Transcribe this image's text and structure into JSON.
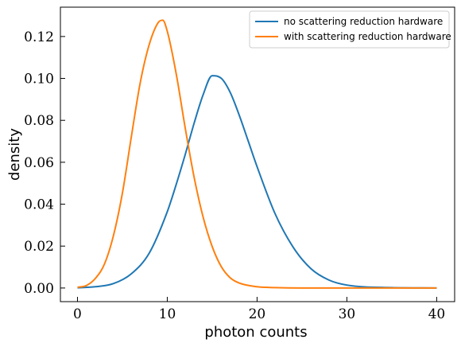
{
  "chart_data": {
    "type": "line",
    "xlabel": "photon counts",
    "ylabel": "density",
    "xlim": [
      -1.9,
      42
    ],
    "ylim": [
      -0.0065,
      0.134
    ],
    "xticks": [
      0,
      10,
      20,
      30,
      40
    ],
    "xtick_labels": [
      "0",
      "10",
      "20",
      "30",
      "40"
    ],
    "yticks": [
      0.0,
      0.02,
      0.04,
      0.06,
      0.08,
      0.1,
      0.12
    ],
    "ytick_labels": [
      "0.00",
      "0.02",
      "0.04",
      "0.06",
      "0.08",
      "0.10",
      "0.12"
    ],
    "grid": false,
    "legend_position": "top-right",
    "series": [
      {
        "name": "no scattering reduction hardware",
        "color": "#1f77b4",
        "x": [
          0,
          2,
          4,
          6,
          8,
          10,
          11,
          12,
          13,
          14,
          15,
          16,
          17,
          18,
          19,
          20,
          22,
          24,
          26,
          28,
          30,
          35,
          40
        ],
        "y": [
          0.0001,
          0.0006,
          0.0021,
          0.0068,
          0.0167,
          0.0364,
          0.0495,
          0.0637,
          0.0788,
          0.0923,
          0.1013,
          0.1001,
          0.0934,
          0.0826,
          0.0703,
          0.0579,
          0.0355,
          0.0196,
          0.0092,
          0.0038,
          0.0014,
          0.0002,
          0.0
        ]
      },
      {
        "name": "with scattering reduction hardware",
        "color": "#ff7f0e",
        "x": [
          0,
          1,
          2,
          3,
          4,
          5,
          6,
          7,
          8,
          9,
          9.5,
          10,
          11,
          12,
          13,
          14,
          15,
          16,
          17,
          18,
          20,
          22,
          25,
          30,
          40
        ],
        "y": [
          0.0003,
          0.0012,
          0.0046,
          0.0114,
          0.0249,
          0.0452,
          0.0722,
          0.0982,
          0.1163,
          0.1267,
          0.1278,
          0.1225,
          0.1021,
          0.0763,
          0.0526,
          0.0337,
          0.0198,
          0.0103,
          0.0049,
          0.0024,
          0.0006,
          0.0002,
          0.0,
          0.0,
          0.0
        ]
      }
    ]
  }
}
